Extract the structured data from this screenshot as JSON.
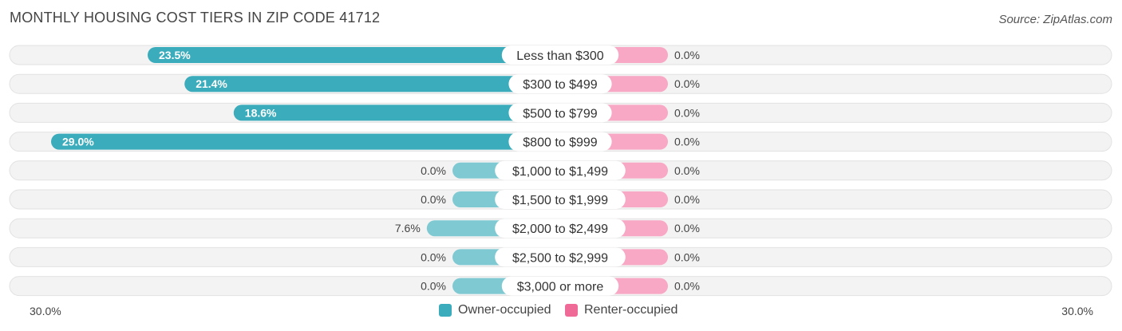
{
  "header": {
    "title": "MONTHLY HOUSING COST TIERS IN ZIP CODE 41712",
    "source": "Source: ZipAtlas.com"
  },
  "colors": {
    "owner": "#3aacbc",
    "owner_light": "#7fc9d3",
    "renter": "#f06a98",
    "renter_light": "#f8a8c4",
    "track": "#f1f1f1"
  },
  "chart_data": {
    "type": "bar",
    "orientation": "horizontal-diverging",
    "categories": [
      "Less than $300",
      "$300 to $499",
      "$500 to $799",
      "$800 to $999",
      "$1,000 to $1,499",
      "$1,500 to $1,999",
      "$2,000 to $2,499",
      "$2,500 to $2,999",
      "$3,000 or more"
    ],
    "series": [
      {
        "name": "Owner-occupied",
        "values": [
          23.5,
          21.4,
          18.6,
          29.0,
          0.0,
          0.0,
          7.6,
          0.0,
          0.0
        ],
        "labels": [
          "23.5%",
          "21.4%",
          "18.6%",
          "29.0%",
          "0.0%",
          "0.0%",
          "7.6%",
          "0.0%",
          "0.0%"
        ]
      },
      {
        "name": "Renter-occupied",
        "values": [
          0.0,
          0.0,
          0.0,
          0.0,
          0.0,
          0.0,
          0.0,
          0.0,
          0.0
        ],
        "labels": [
          "0.0%",
          "0.0%",
          "0.0%",
          "0.0%",
          "0.0%",
          "0.0%",
          "0.0%",
          "0.0%",
          "0.0%"
        ]
      }
    ],
    "axis_max": 30.0,
    "axis_left_label": "30.0%",
    "axis_right_label": "30.0%",
    "legend_position": "bottom-center"
  }
}
